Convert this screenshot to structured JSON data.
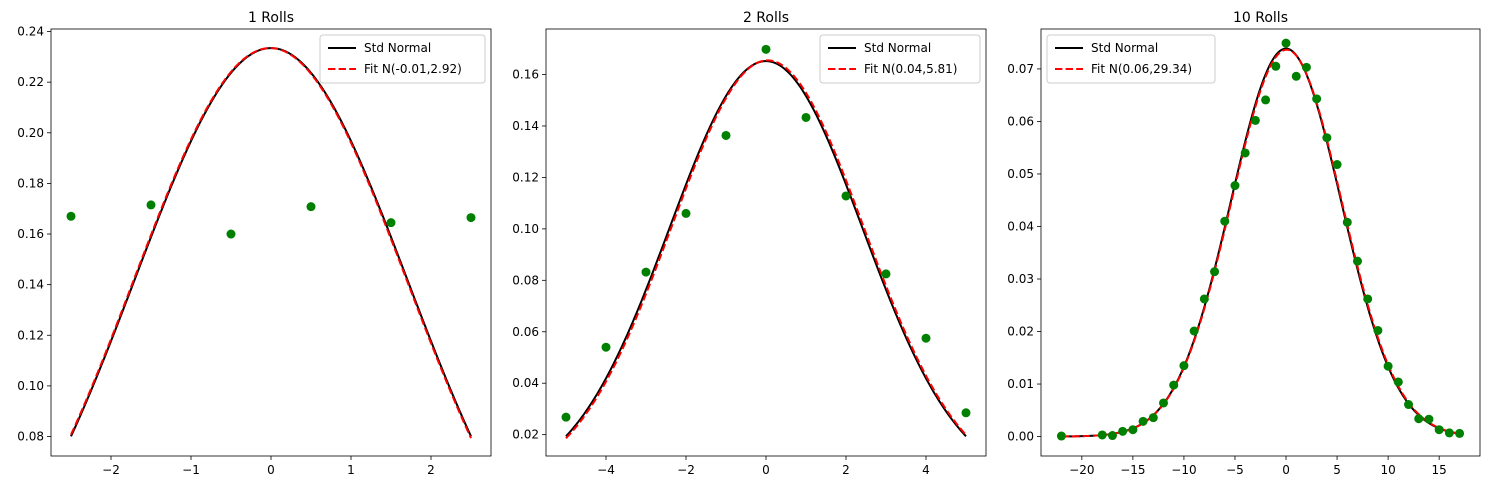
{
  "chart_data": [
    {
      "type": "scatter",
      "title": "1 Rolls",
      "xlabel": "",
      "ylabel": "",
      "xlim": [
        -2.75,
        2.75
      ],
      "ylim": [
        0.0723,
        0.241
      ],
      "xticks": [
        -2,
        -1,
        0,
        1,
        2
      ],
      "xtick_labels": [
        "−2",
        "−1",
        "0",
        "1",
        "2"
      ],
      "yticks": [
        0.08,
        0.1,
        0.12,
        0.14,
        0.16,
        0.18,
        0.2,
        0.22,
        0.24
      ],
      "ytick_labels": [
        "0.08",
        "0.10",
        "0.12",
        "0.14",
        "0.16",
        "0.18",
        "0.20",
        "0.22",
        "0.24"
      ],
      "legend_loc": "upper right",
      "curve_range": [
        -2.5,
        2.5
      ],
      "series": [
        {
          "name": "Std Normal",
          "kind": "line",
          "color": "#000000",
          "dash": "solid",
          "mean": 0,
          "variance": 2.92
        },
        {
          "name": "Fit N(-0.01,2.92)",
          "kind": "line",
          "color": "#ff0000",
          "dash": "dashed",
          "mean": -0.01,
          "variance": 2.92
        },
        {
          "kind": "points",
          "color": "#008000",
          "x": [
            -2.5,
            -1.5,
            -0.5,
            0.5,
            1.5,
            2.5
          ],
          "y": [
            0.167,
            0.1715,
            0.16,
            0.1708,
            0.1645,
            0.1665
          ]
        }
      ]
    },
    {
      "type": "scatter",
      "title": "2 Rolls",
      "xlabel": "",
      "ylabel": "",
      "xlim": [
        -5.5,
        5.5
      ],
      "ylim": [
        0.0117,
        0.1777
      ],
      "xticks": [
        -4,
        -2,
        0,
        2,
        4
      ],
      "xtick_labels": [
        "−4",
        "−2",
        "0",
        "2",
        "4"
      ],
      "yticks": [
        0.02,
        0.04,
        0.06,
        0.08,
        0.1,
        0.12,
        0.14,
        0.16
      ],
      "ytick_labels": [
        "0.02",
        "0.04",
        "0.06",
        "0.08",
        "0.10",
        "0.12",
        "0.14",
        "0.16"
      ],
      "legend_loc": "upper right",
      "curve_range": [
        -5,
        5
      ],
      "series": [
        {
          "name": "Std Normal",
          "kind": "line",
          "color": "#000000",
          "dash": "solid",
          "mean": 0,
          "variance": 5.83
        },
        {
          "name": "Fit N(0.04,5.81)",
          "kind": "line",
          "color": "#ff0000",
          "dash": "dashed",
          "mean": 0.04,
          "variance": 5.81
        },
        {
          "kind": "points",
          "color": "#008000",
          "x": [
            -5,
            -4,
            -3,
            -2,
            -1,
            0,
            1,
            2,
            3,
            4,
            5
          ],
          "y": [
            0.0268,
            0.054,
            0.0832,
            0.106,
            0.1363,
            0.1698,
            0.1433,
            0.1128,
            0.0825,
            0.0575,
            0.0285
          ]
        }
      ]
    },
    {
      "type": "scatter",
      "title": "10 Rolls",
      "xlabel": "",
      "ylabel": "",
      "xlim": [
        -24.0,
        19.0
      ],
      "ylim": [
        -0.0037,
        0.0776
      ],
      "xticks": [
        -20,
        -15,
        -10,
        -5,
        0,
        5,
        10,
        15
      ],
      "xtick_labels": [
        "−20",
        "−15",
        "−10",
        "−5",
        "0",
        "5",
        "10",
        "15"
      ],
      "yticks": [
        0.0,
        0.01,
        0.02,
        0.03,
        0.04,
        0.05,
        0.06,
        0.07
      ],
      "ytick_labels": [
        "0.00",
        "0.01",
        "0.02",
        "0.03",
        "0.04",
        "0.05",
        "0.06",
        "0.07"
      ],
      "legend_loc": "upper left",
      "curve_range": [
        -22,
        17
      ],
      "series": [
        {
          "name": "Std Normal",
          "kind": "line",
          "color": "#000000",
          "dash": "solid",
          "mean": 0,
          "variance": 29.17
        },
        {
          "name": "Fit N(0.06,29.34)",
          "kind": "line",
          "color": "#ff0000",
          "dash": "dashed",
          "mean": 0.06,
          "variance": 29.34
        },
        {
          "kind": "points",
          "color": "#008000",
          "x": [
            -22,
            -18,
            -17,
            -16,
            -15,
            -14,
            -13,
            -12,
            -11,
            -10,
            -9,
            -8,
            -7,
            -6,
            -5,
            -4,
            -3,
            -2,
            -1,
            0,
            1,
            2,
            3,
            4,
            5,
            6,
            7,
            8,
            9,
            10,
            11,
            12,
            13,
            14,
            15,
            16,
            17
          ],
          "y": [
            0.0001,
            0.0003,
            0.0002,
            0.001,
            0.0013,
            0.0029,
            0.0036,
            0.0064,
            0.0098,
            0.0135,
            0.0201,
            0.0262,
            0.0314,
            0.041,
            0.0478,
            0.054,
            0.0602,
            0.0641,
            0.0705,
            0.0749,
            0.0686,
            0.0703,
            0.0643,
            0.0569,
            0.0518,
            0.0408,
            0.0334,
            0.0262,
            0.0202,
            0.0134,
            0.0104,
            0.0061,
            0.0034,
            0.0033,
            0.0013,
            0.0007,
            0.0006
          ]
        }
      ]
    }
  ]
}
